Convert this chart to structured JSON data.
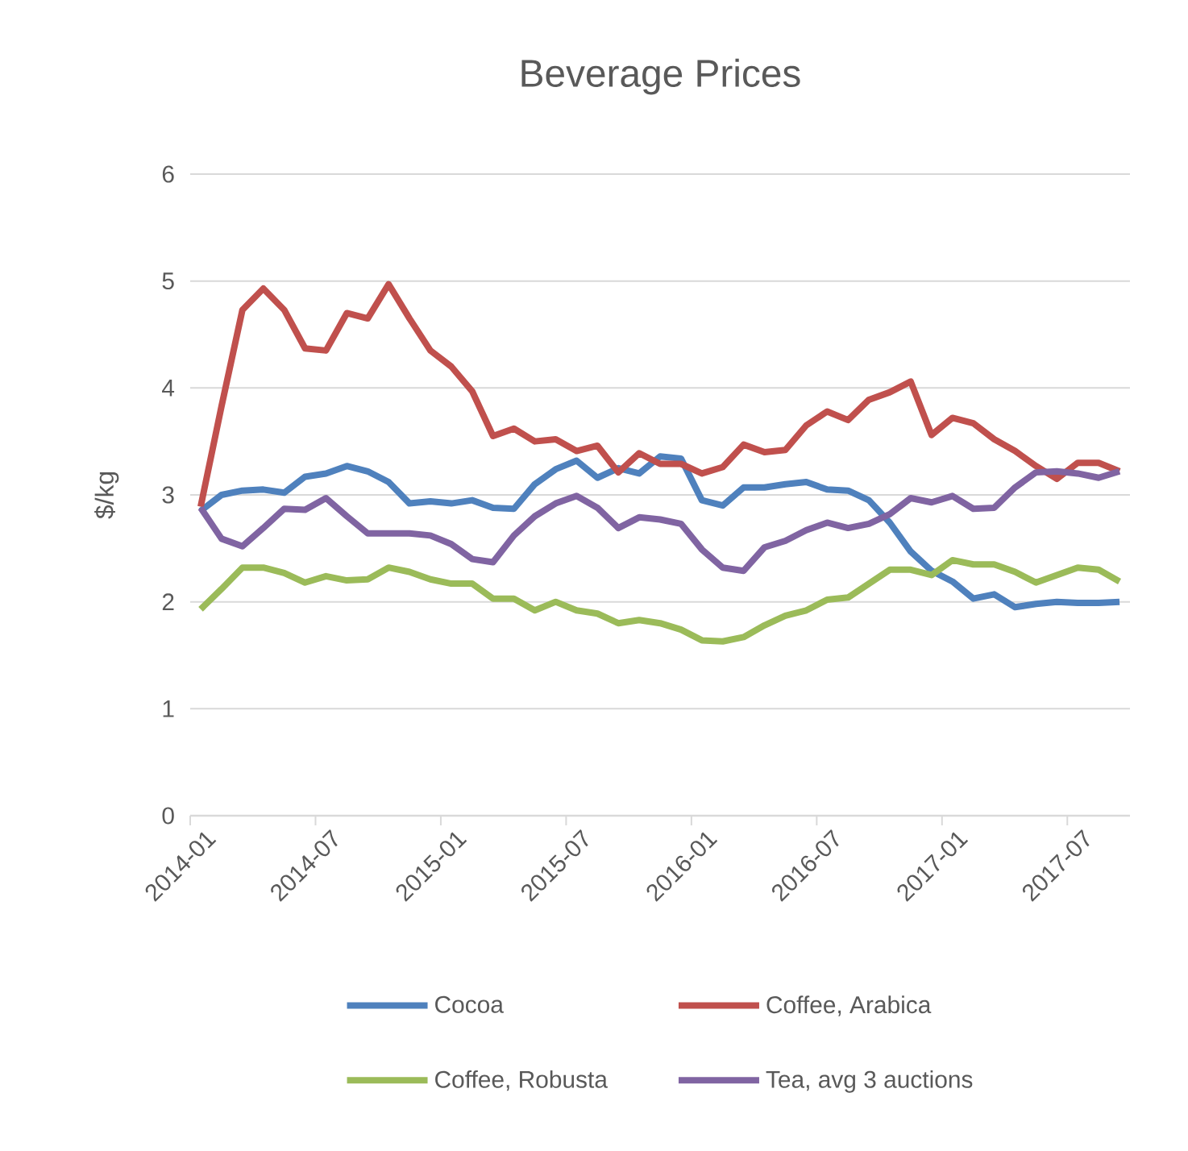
{
  "chart_data": {
    "type": "line",
    "title": "Beverage Prices",
    "ylabel": "$/kg",
    "categories": [
      "2014-01",
      null,
      null,
      null,
      null,
      null,
      "2014-07",
      null,
      null,
      null,
      null,
      null,
      "2015-01",
      null,
      null,
      null,
      null,
      null,
      "2015-07",
      null,
      null,
      null,
      null,
      null,
      "2016-01",
      null,
      null,
      null,
      null,
      null,
      "2016-07",
      null,
      null,
      null,
      null,
      null,
      "2017-01",
      null,
      null,
      null,
      null,
      null,
      "2017-07",
      null,
      null
    ],
    "series": [
      {
        "name": "Cocoa",
        "color": "#4f81bd",
        "values": [
          2.85,
          3.0,
          3.04,
          3.05,
          3.02,
          3.17,
          3.2,
          3.27,
          3.22,
          3.12,
          2.92,
          2.94,
          2.92,
          2.95,
          2.88,
          2.87,
          3.1,
          3.24,
          3.32,
          3.16,
          3.25,
          3.2,
          3.36,
          3.34,
          2.95,
          2.9,
          3.07,
          3.07,
          3.1,
          3.12,
          3.05,
          3.04,
          2.95,
          2.74,
          2.47,
          2.29,
          2.19,
          2.03,
          2.07,
          1.95,
          1.98,
          2.0,
          1.99,
          1.99,
          2.0
        ]
      },
      {
        "name": "Coffee, Arabica",
        "color": "#c0504d",
        "values": [
          2.89,
          3.83,
          4.73,
          4.93,
          4.73,
          4.37,
          4.35,
          4.7,
          4.65,
          4.97,
          4.65,
          4.35,
          4.2,
          3.97,
          3.55,
          3.62,
          3.5,
          3.52,
          3.41,
          3.46,
          3.21,
          3.39,
          3.29,
          3.29,
          3.2,
          3.26,
          3.47,
          3.4,
          3.42,
          3.65,
          3.78,
          3.7,
          3.89,
          3.96,
          4.06,
          3.56,
          3.72,
          3.67,
          3.52,
          3.41,
          3.27,
          3.15,
          3.3,
          3.3,
          3.22
        ]
      },
      {
        "name": "Coffee, Robusta",
        "color": "#9bbb59",
        "values": [
          1.93,
          2.12,
          2.32,
          2.32,
          2.27,
          2.18,
          2.24,
          2.2,
          2.21,
          2.32,
          2.28,
          2.21,
          2.17,
          2.17,
          2.03,
          2.03,
          1.92,
          2.0,
          1.92,
          1.89,
          1.8,
          1.83,
          1.8,
          1.74,
          1.64,
          1.63,
          1.67,
          1.78,
          1.87,
          1.92,
          2.02,
          2.04,
          2.17,
          2.3,
          2.3,
          2.25,
          2.39,
          2.35,
          2.35,
          2.28,
          2.18,
          2.25,
          2.32,
          2.3,
          2.19
        ]
      },
      {
        "name": "Tea, avg 3 auctions",
        "color": "#8064a2",
        "values": [
          2.88,
          2.59,
          2.52,
          2.69,
          2.87,
          2.86,
          2.97,
          2.8,
          2.64,
          2.64,
          2.64,
          2.62,
          2.54,
          2.4,
          2.37,
          2.62,
          2.8,
          2.92,
          2.99,
          2.88,
          2.69,
          2.79,
          2.77,
          2.73,
          2.49,
          2.32,
          2.29,
          2.51,
          2.57,
          2.67,
          2.74,
          2.69,
          2.73,
          2.82,
          2.97,
          2.93,
          2.99,
          2.87,
          2.88,
          3.07,
          3.21,
          3.22,
          3.2,
          3.16,
          3.22
        ]
      }
    ],
    "ylim": [
      0,
      6
    ],
    "yticks": [
      0,
      1,
      2,
      3,
      4,
      5,
      6
    ],
    "grid": "y",
    "legend": "bottom"
  }
}
